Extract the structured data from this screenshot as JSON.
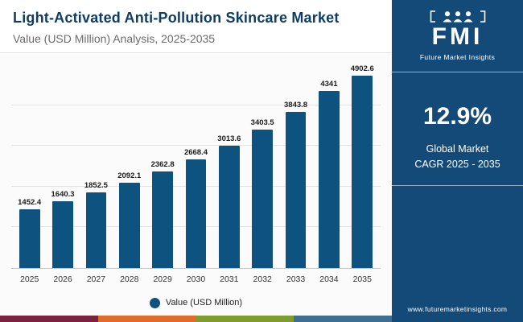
{
  "header": {
    "title": "Light-Activated Anti-Pollution Skincare Market",
    "subtitle": "Value (USD Million) Analysis, 2025-2035"
  },
  "sidebar": {
    "logo_text": "FMI",
    "logo_caption": "Future Market Insights",
    "cagr_value": "12.9%",
    "cagr_line1": "Global Market",
    "cagr_line2": "CAGR 2025 - 2035",
    "website": "www.futuremarketinsights.com",
    "bg_color": "#144a78"
  },
  "chart_data": {
    "type": "bar",
    "categories": [
      "2025",
      "2026",
      "2027",
      "2028",
      "2029",
      "2030",
      "2031",
      "2032",
      "2033",
      "2034",
      "2035"
    ],
    "values": [
      1452.4,
      1640.3,
      1852.5,
      2092.1,
      2362.8,
      2668.4,
      3013.6,
      3403.5,
      3843.8,
      4341,
      4902.6
    ],
    "title": "Light-Activated Anti-Pollution Skincare Market",
    "xlabel": "",
    "ylabel": "Value (USD Million)",
    "ylim": [
      0,
      5000
    ],
    "gridlines": [
      1000,
      2000,
      3000,
      4000
    ],
    "grid": true,
    "legend_position": "bottom",
    "legend_label": "Value (USD Million)",
    "bar_color": "#0e527f"
  },
  "footer": {
    "strip_colors": [
      "#7d2140",
      "#df6c2c",
      "#7f9c31",
      "#3f6e90"
    ]
  }
}
